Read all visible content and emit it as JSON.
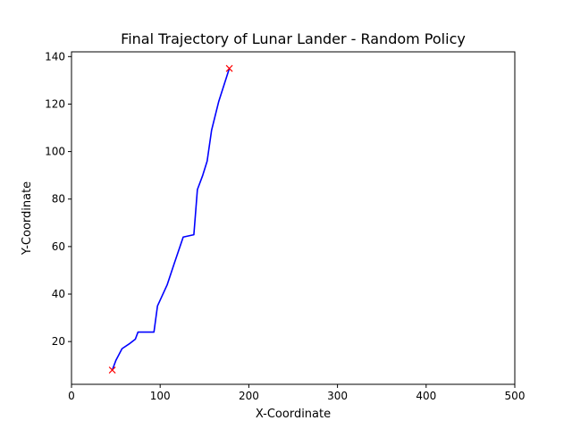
{
  "chart_data": {
    "type": "line",
    "title": "Final Trajectory of Lunar Lander - Random Policy",
    "xlabel": "X-Coordinate",
    "ylabel": "Y-Coordinate",
    "xlim": [
      0,
      500
    ],
    "ylim": [
      2,
      142
    ],
    "xticks": [
      0,
      100,
      200,
      300,
      400,
      500
    ],
    "yticks": [
      20,
      40,
      60,
      80,
      100,
      120,
      140
    ],
    "grid": false,
    "legend": "none",
    "series": [
      {
        "color": "#0000ff",
        "x": [
          46,
          50,
          57,
          65,
          72,
          75,
          85,
          93,
          97,
          108,
          116,
          126,
          138,
          142,
          148,
          153,
          158,
          166,
          178
        ],
        "y": [
          8,
          12,
          17,
          19,
          21,
          24,
          24,
          24,
          35,
          44,
          53,
          64,
          65,
          84,
          90,
          96,
          109,
          121,
          135
        ]
      }
    ],
    "markers": [
      {
        "x": 46,
        "y": 8,
        "symbol": "x",
        "color": "#ff0000"
      },
      {
        "x": 178,
        "y": 135,
        "symbol": "x",
        "color": "#ff0000"
      }
    ]
  }
}
